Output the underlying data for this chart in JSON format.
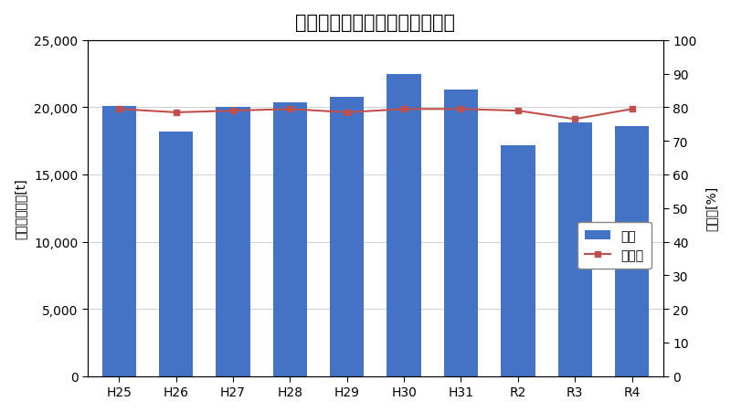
{
  "title": "脱水ケーキ量及び含水率の推移",
  "categories": [
    "H25",
    "H26",
    "H27",
    "H28",
    "H29",
    "H30",
    "H31",
    "R2",
    "R3",
    "R4"
  ],
  "bar_values": [
    20100,
    18200,
    20050,
    20350,
    20800,
    22500,
    21300,
    17200,
    18900,
    18600
  ],
  "line_values": [
    79.5,
    78.5,
    79.0,
    79.5,
    78.5,
    79.5,
    79.5,
    79.0,
    76.5,
    79.5
  ],
  "bar_color": "#4472C4",
  "line_color": "#C0504D",
  "ylabel_left": "脱水ケーキ量[t]",
  "ylabel_right": "含水率[%]",
  "ylim_left": [
    0,
    25000
  ],
  "ylim_right": [
    0,
    100
  ],
  "yticks_left": [
    0,
    5000,
    10000,
    15000,
    20000,
    25000
  ],
  "yticks_right": [
    0,
    10,
    20,
    30,
    40,
    50,
    60,
    70,
    80,
    90,
    100
  ],
  "legend_label_bar": "重量",
  "legend_label_line": "含水率",
  "bar_width": 0.6,
  "background_color": "#ffffff"
}
